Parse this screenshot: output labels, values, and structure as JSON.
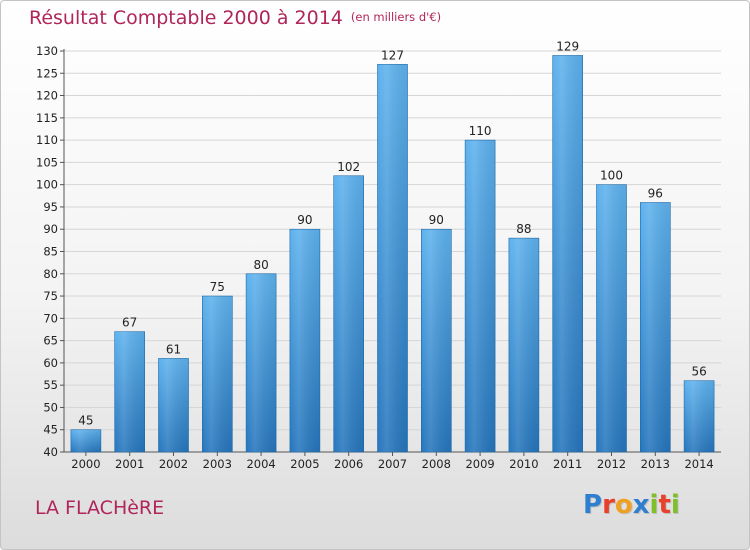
{
  "page": {
    "title": "Résultat Comptable 2000 à 2014",
    "subtitle": "(en milliers d'€)",
    "commune": "LA FLACHèRE",
    "logo": {
      "text": "Proxiti",
      "letters": [
        {
          "ch": "P",
          "color": "#2f7fd0"
        },
        {
          "ch": "r",
          "color": "#e8402a"
        },
        {
          "ch": "o",
          "color": "#f0a020"
        },
        {
          "ch": "x",
          "color": "#2f7fd0"
        },
        {
          "ch": "i",
          "color": "#7fbf2a"
        },
        {
          "ch": "t",
          "color": "#e8402a"
        },
        {
          "ch": "i",
          "color": "#7fbf2a"
        }
      ]
    }
  },
  "colors": {
    "title": "#b0255a",
    "bar_light": "#5aaeea",
    "bar_dark": "#2878bf",
    "grid": "#d6d6d6"
  },
  "chart_data": {
    "type": "bar",
    "categories": [
      "2000",
      "2001",
      "2002",
      "2003",
      "2004",
      "2005",
      "2006",
      "2007",
      "2008",
      "2009",
      "2010",
      "2011",
      "2012",
      "2013",
      "2014"
    ],
    "values": [
      45,
      67,
      61,
      75,
      80,
      90,
      102,
      127,
      90,
      110,
      88,
      129,
      100,
      96,
      56
    ],
    "title": "Résultat Comptable 2000 à 2014",
    "subtitle": "(en milliers d'€)",
    "xlabel": "",
    "ylabel": "",
    "ylim": [
      40,
      130
    ],
    "yticks": [
      40,
      45,
      50,
      55,
      60,
      65,
      70,
      75,
      80,
      85,
      90,
      95,
      100,
      105,
      110,
      115,
      120,
      125,
      130
    ],
    "grid": true,
    "data_labels": true
  }
}
